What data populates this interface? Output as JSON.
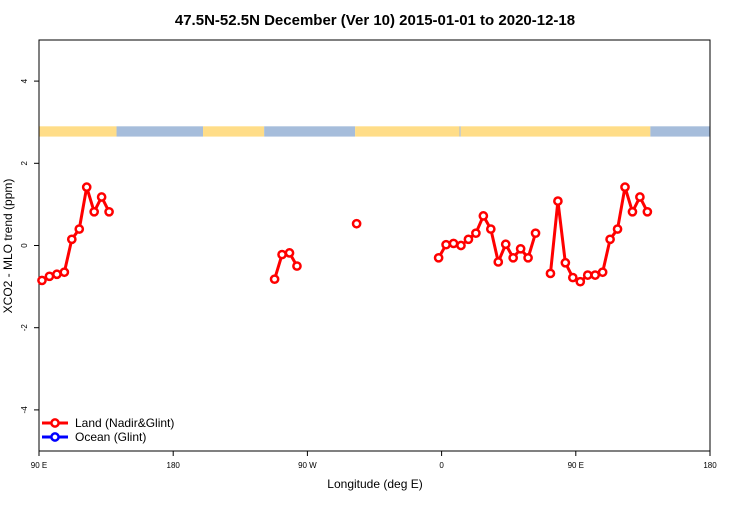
{
  "chart_data": {
    "type": "line",
    "title": "47.5N-52.5N December (Ver 10)   2015-01-01 to 2020-12-18",
    "xlabel": "Longitude (deg E)",
    "ylabel": "XCO2 - MLO trend (ppm)",
    "xlim": [
      90,
      540
    ],
    "ylim": [
      -5,
      5
    ],
    "x_ticks": [
      {
        "value": 90,
        "label": "90 E"
      },
      {
        "value": 180,
        "label": "180"
      },
      {
        "value": 270,
        "label": "90 W"
      },
      {
        "value": 360,
        "label": "0"
      },
      {
        "value": 450,
        "label": "90 E"
      },
      {
        "value": 540,
        "label": "180"
      }
    ],
    "y_ticks": [
      {
        "value": -4,
        "label": "-4"
      },
      {
        "value": -2,
        "label": "-2"
      },
      {
        "value": 0,
        "label": "0"
      },
      {
        "value": 2,
        "label": "2"
      },
      {
        "value": 4,
        "label": "4"
      }
    ],
    "surface_strip": {
      "y_range": [
        2.65,
        2.9
      ],
      "land_color": "#ffdd88",
      "ocean_color": "#a6bddb",
      "segments": [
        {
          "type": "land",
          "from": 90,
          "to": 142
        },
        {
          "type": "ocean",
          "from": 142,
          "to": 200
        },
        {
          "type": "land",
          "from": 200,
          "to": 241
        },
        {
          "type": "ocean",
          "from": 241,
          "to": 302
        },
        {
          "type": "land",
          "from": 302,
          "to": 372
        },
        {
          "type": "ocean",
          "from": 372,
          "to": 372.8
        },
        {
          "type": "land",
          "from": 372.8,
          "to": 500
        },
        {
          "type": "ocean",
          "from": 500,
          "to": 540
        }
      ]
    },
    "series": [
      {
        "name": "Land (Nadir&Glint)",
        "color": "#ff0000",
        "segments": [
          [
            [
              92,
              -0.85
            ],
            [
              97,
              -0.75
            ],
            [
              102,
              -0.7
            ],
            [
              107,
              -0.65
            ],
            [
              112,
              0.15
            ],
            [
              117,
              0.4
            ],
            [
              122,
              1.42
            ],
            [
              127,
              0.82
            ],
            [
              132,
              1.18
            ],
            [
              137,
              0.82
            ]
          ],
          [
            [
              248,
              -0.82
            ],
            [
              253,
              -0.22
            ],
            [
              258,
              -0.18
            ],
            [
              263,
              -0.5
            ]
          ],
          [
            [
              303,
              0.53
            ]
          ],
          [
            [
              358,
              -0.3
            ],
            [
              363,
              0.02
            ],
            [
              368,
              0.05
            ],
            [
              373,
              0.0
            ],
            [
              378,
              0.15
            ],
            [
              383,
              0.3
            ],
            [
              388,
              0.72
            ],
            [
              393,
              0.4
            ],
            [
              398,
              -0.4
            ],
            [
              403,
              0.03
            ],
            [
              408,
              -0.3
            ],
            [
              413,
              -0.08
            ],
            [
              418,
              -0.3
            ],
            [
              423,
              0.3
            ]
          ],
          [
            [
              433,
              -0.68
            ],
            [
              438,
              1.08
            ],
            [
              443,
              -0.42
            ],
            [
              448,
              -0.78
            ],
            [
              453,
              -0.88
            ],
            [
              458,
              -0.72
            ],
            [
              463,
              -0.72
            ],
            [
              468,
              -0.65
            ],
            [
              473,
              0.15
            ],
            [
              478,
              0.4
            ],
            [
              483,
              1.42
            ],
            [
              488,
              0.82
            ],
            [
              493,
              1.18
            ],
            [
              498,
              0.82
            ]
          ]
        ]
      },
      {
        "name": "Ocean (Glint)",
        "color": "#0000ff",
        "segments": []
      }
    ],
    "legend": {
      "placement": "bottom-left",
      "entries": [
        {
          "label": "Land (Nadir&Glint)",
          "color": "#ff0000"
        },
        {
          "label": "Ocean (Glint)",
          "color": "#0000ff"
        }
      ]
    }
  }
}
